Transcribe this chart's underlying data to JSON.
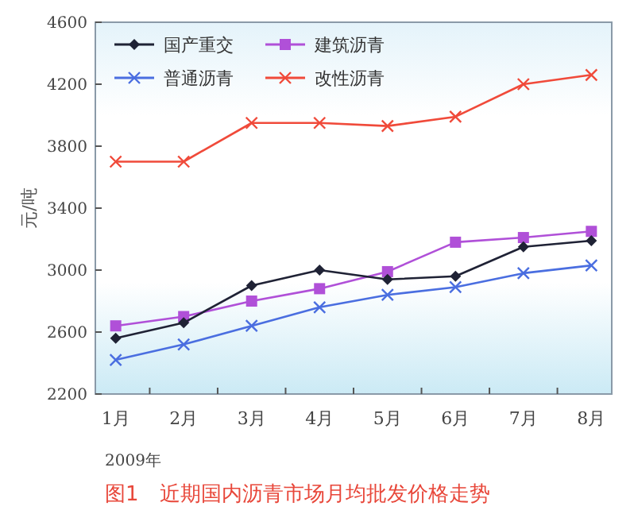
{
  "chart_data": {
    "type": "line",
    "title": "图1　近期国内沥青市场月均批发价格走势",
    "xlabel": "2009年",
    "ylabel": "元/吨",
    "categories": [
      "1月",
      "2月",
      "3月",
      "4月",
      "5月",
      "6月",
      "7月",
      "8月"
    ],
    "ylim": [
      2200,
      4600
    ],
    "yticks": [
      2200,
      2600,
      3000,
      3400,
      3800,
      4200,
      4600
    ],
    "grid": false,
    "legend": "top left",
    "series": [
      {
        "name": "国产重交",
        "color": "#1f2235",
        "marker": "diamond",
        "values": [
          2560,
          2660,
          2900,
          3000,
          2940,
          2960,
          3150,
          3190
        ]
      },
      {
        "name": "建筑沥青",
        "color": "#b050d8",
        "marker": "square",
        "values": [
          2640,
          2700,
          2800,
          2880,
          2990,
          3180,
          3210,
          3250
        ]
      },
      {
        "name": "普通沥青",
        "color": "#4a6ee0",
        "marker": "cross",
        "values": [
          2420,
          2520,
          2640,
          2760,
          2840,
          2890,
          2980,
          3030
        ]
      },
      {
        "name": "改性沥青",
        "color": "#f04a3a",
        "marker": "cross",
        "values": [
          3700,
          3700,
          3950,
          3950,
          3930,
          3990,
          4200,
          4260
        ]
      }
    ]
  }
}
